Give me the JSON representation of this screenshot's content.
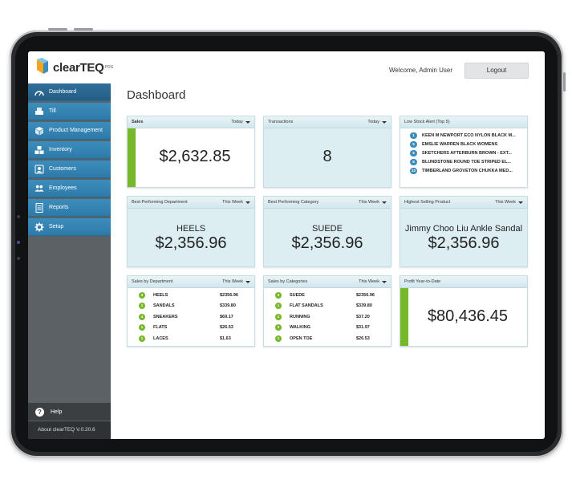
{
  "header": {
    "logo_text": "clearTEQ",
    "logo_sup": "POS",
    "welcome": "Welcome, Admin User",
    "logout_label": "Logout"
  },
  "sidebar": {
    "items": [
      {
        "label": "Dashboard",
        "icon": "dashboard-icon"
      },
      {
        "label": "Till",
        "icon": "till-icon"
      },
      {
        "label": "Product Management",
        "icon": "box-icon"
      },
      {
        "label": "Inventory",
        "icon": "boxes-icon"
      },
      {
        "label": "Customers",
        "icon": "customer-icon"
      },
      {
        "label": "Employees",
        "icon": "users-icon"
      },
      {
        "label": "Reports",
        "icon": "document-icon"
      },
      {
        "label": "Setup",
        "icon": "gear-icon"
      }
    ],
    "help_label": "Help",
    "about_label": "About clearTEQ V.0.20.6"
  },
  "page": {
    "title": "Dashboard"
  },
  "cards": {
    "sales": {
      "title": "Sales",
      "period": "Today",
      "value": "$2,632.85"
    },
    "transactions": {
      "title": "Transactions",
      "period": "Today",
      "value": "8"
    },
    "low_stock": {
      "title": "Low Stock Alert   (Top 5)",
      "items": [
        {
          "count": "1",
          "name": "KEEN M NEWPORT ECO NYLON BLACK M..."
        },
        {
          "count": "5",
          "name": "EMSLIE WARREN BLACK WOMENS"
        },
        {
          "count": "5",
          "name": "SKETCHERS AFTERBURN BROWN - EXT..."
        },
        {
          "count": "6",
          "name": "BLUNDSTONE ROUND TOE STRIPED EL..."
        },
        {
          "count": "22",
          "name": "TIMBERLAND GROVETON CHUKKA MED..."
        }
      ]
    },
    "best_department": {
      "title": "Best Performing Department",
      "period": "This Week",
      "name": "HEELS",
      "value": "$2,356.96"
    },
    "best_category": {
      "title": "Best Performing Category",
      "period": "This Week",
      "name": "SUEDE",
      "value": "$2,356.96"
    },
    "highest_product": {
      "title": "Highest Selling Product",
      "period": "This Week",
      "name": "Jimmy Choo Liu Ankle Sandal",
      "value": "$2,356.96"
    },
    "sales_by_department": {
      "title": "Sales by Department",
      "period": "This Week",
      "rows": [
        {
          "rank": "3",
          "name": "HEELS",
          "amount": "$2356.96"
        },
        {
          "rank": "1",
          "name": "SANDALS",
          "amount": "$339.80"
        },
        {
          "rank": "4",
          "name": "SNEAKERS",
          "amount": "$69.17"
        },
        {
          "rank": "1",
          "name": "FLATS",
          "amount": "$26.53"
        },
        {
          "rank": "1",
          "name": "LACES",
          "amount": "$1.63"
        }
      ]
    },
    "sales_by_categories": {
      "title": "Sales by Categories",
      "period": "This Week",
      "rows": [
        {
          "rank": "3",
          "name": "SUEDE",
          "amount": "$2356.96"
        },
        {
          "rank": "1",
          "name": "FLAT SANDALS",
          "amount": "$339.80"
        },
        {
          "rank": "2",
          "name": "RUNNING",
          "amount": "$37.20"
        },
        {
          "rank": "2",
          "name": "WALKING",
          "amount": "$31.97"
        },
        {
          "rank": "1",
          "name": "OPEN TOE",
          "amount": "$26.53"
        }
      ]
    },
    "profit_ytd": {
      "title": "Profit Year-to-Date",
      "value": "$80,436.45"
    }
  },
  "colors": {
    "nav_blue": "#3c8dbc",
    "accent_green": "#77b82a",
    "card_tint": "#ddeef3"
  }
}
